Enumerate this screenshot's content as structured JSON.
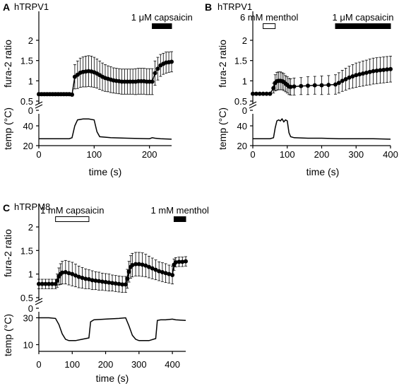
{
  "chart_data": [
    {
      "panel_letter": "A",
      "type": "line",
      "title": "hTRPV1",
      "xlabel": "time (s)",
      "ylabel_top": "fura-2 ratio",
      "ylabel_bottom": "temp (°C)",
      "xlim": [
        0,
        240
      ],
      "x_ticks": [
        0,
        100,
        200
      ],
      "ratio_ylim": [
        0.5,
        2
      ],
      "ratio_ticks": [
        "0.5",
        "1",
        "1.5",
        "2"
      ],
      "break_tick": "0",
      "temp_ylim": [
        20,
        55
      ],
      "temp_ticks": [
        "20",
        "40"
      ],
      "series": [
        {
          "measure": "fura-2 ratio",
          "x": [
            0,
            5,
            10,
            15,
            20,
            25,
            30,
            35,
            40,
            45,
            50,
            55,
            60,
            65,
            70,
            75,
            80,
            85,
            90,
            95,
            100,
            105,
            110,
            115,
            120,
            125,
            130,
            135,
            140,
            145,
            150,
            155,
            160,
            165,
            170,
            175,
            180,
            185,
            190,
            195,
            200,
            205,
            210,
            215,
            220,
            225,
            230,
            235,
            240
          ],
          "y": [
            0.67,
            0.67,
            0.67,
            0.67,
            0.67,
            0.67,
            0.67,
            0.67,
            0.67,
            0.67,
            0.67,
            0.67,
            0.66,
            1.1,
            1.15,
            1.2,
            1.22,
            1.23,
            1.24,
            1.23,
            1.21,
            1.18,
            1.14,
            1.1,
            1.07,
            1.05,
            1.03,
            1.01,
            1.0,
            0.99,
            0.98,
            0.98,
            0.98,
            0.98,
            0.98,
            0.98,
            0.99,
            0.99,
            0.99,
            0.98,
            0.98,
            0.98,
            1.19,
            1.3,
            1.38,
            1.42,
            1.45,
            1.46,
            1.47
          ],
          "err": [
            0.04,
            0.04,
            0.04,
            0.04,
            0.04,
            0.04,
            0.04,
            0.04,
            0.04,
            0.04,
            0.04,
            0.04,
            0.04,
            0.3,
            0.34,
            0.36,
            0.37,
            0.38,
            0.38,
            0.38,
            0.37,
            0.36,
            0.35,
            0.34,
            0.33,
            0.32,
            0.32,
            0.31,
            0.31,
            0.31,
            0.31,
            0.31,
            0.31,
            0.31,
            0.31,
            0.32,
            0.32,
            0.32,
            0.32,
            0.32,
            0.32,
            0.32,
            0.3,
            0.28,
            0.27,
            0.26,
            0.26,
            0.25,
            0.25
          ]
        },
        {
          "measure": "temperature",
          "x": [
            0,
            50,
            55,
            60,
            65,
            70,
            80,
            90,
            100,
            105,
            110,
            130,
            160,
            200,
            205,
            210,
            220,
            240
          ],
          "y": [
            27,
            27,
            27,
            28,
            40,
            46,
            47,
            47,
            46,
            34,
            29,
            28,
            27.5,
            27,
            28,
            27.5,
            27,
            26.5
          ]
        }
      ],
      "annotations": [
        {
          "label": "1 μM capsaicin",
          "start": 205,
          "end": 240,
          "fill": "#000000"
        }
      ]
    },
    {
      "panel_letter": "B",
      "type": "line",
      "title": "hTRPV1",
      "xlabel": "time (s)",
      "ylabel_top": "fura-2 ratio",
      "ylabel_bottom": "temp (°C)",
      "xlim": [
        0,
        400
      ],
      "x_ticks": [
        0,
        100,
        200,
        300,
        400
      ],
      "ratio_ylim": [
        0.5,
        2
      ],
      "ratio_ticks": [
        "0.5",
        "1",
        "1.5",
        "2"
      ],
      "break_tick": "0",
      "temp_ylim": [
        20,
        55
      ],
      "temp_ticks": [
        "20",
        "40"
      ],
      "series": [
        {
          "measure": "fura-2 ratio",
          "x": [
            0,
            10,
            20,
            30,
            40,
            50,
            60,
            65,
            70,
            75,
            80,
            85,
            90,
            95,
            100,
            105,
            110,
            120,
            140,
            160,
            180,
            200,
            220,
            240,
            250,
            260,
            270,
            280,
            290,
            300,
            310,
            320,
            330,
            340,
            350,
            360,
            370,
            380,
            390,
            400
          ],
          "y": [
            0.68,
            0.68,
            0.68,
            0.68,
            0.68,
            0.68,
            0.82,
            0.95,
            0.99,
            1.0,
            1.0,
            0.99,
            0.97,
            0.93,
            0.9,
            0.86,
            0.85,
            0.86,
            0.87,
            0.88,
            0.89,
            0.89,
            0.9,
            0.91,
            0.95,
            1.0,
            1.04,
            1.08,
            1.11,
            1.14,
            1.16,
            1.18,
            1.2,
            1.22,
            1.24,
            1.25,
            1.26,
            1.27,
            1.28,
            1.29
          ],
          "err": [
            0.03,
            0.03,
            0.03,
            0.03,
            0.03,
            0.03,
            0.12,
            0.2,
            0.22,
            0.22,
            0.22,
            0.21,
            0.21,
            0.2,
            0.2,
            0.2,
            0.2,
            0.21,
            0.21,
            0.22,
            0.22,
            0.23,
            0.23,
            0.24,
            0.25,
            0.26,
            0.27,
            0.28,
            0.29,
            0.3,
            0.3,
            0.31,
            0.31,
            0.32,
            0.32,
            0.32,
            0.32,
            0.32,
            0.32,
            0.32
          ]
        },
        {
          "measure": "temperature",
          "x": [
            0,
            50,
            60,
            65,
            70,
            75,
            80,
            85,
            90,
            95,
            100,
            105,
            110,
            120,
            160,
            200,
            250,
            300,
            350,
            400
          ],
          "y": [
            27,
            27,
            28,
            38,
            45,
            46,
            45,
            47,
            44,
            46,
            45,
            33,
            29,
            28,
            27.5,
            27.5,
            27,
            27,
            27,
            26.5
          ]
        }
      ],
      "annotations": [
        {
          "label": "6 mM menthol",
          "start": 30,
          "end": 65,
          "fill": "#ffffff"
        },
        {
          "label": "1 μM capsaicin",
          "start": 240,
          "end": 400,
          "fill": "#000000"
        }
      ]
    },
    {
      "panel_letter": "C",
      "type": "line",
      "title": "hTRPM8",
      "xlabel": "time (s)",
      "ylabel_top": "fura-2 ratio",
      "ylabel_bottom": "temp (°C)",
      "xlim": [
        0,
        440
      ],
      "x_ticks": [
        0,
        100,
        200,
        300,
        400
      ],
      "ratio_ylim": [
        0.5,
        2
      ],
      "ratio_ticks": [
        "0.5",
        "1",
        "1.5",
        "2"
      ],
      "break_tick": "0",
      "temp_ylim": [
        5,
        35
      ],
      "temp_ticks": [
        "10",
        "30"
      ],
      "series": [
        {
          "measure": "fura-2 ratio",
          "x": [
            0,
            10,
            20,
            30,
            40,
            50,
            55,
            60,
            65,
            70,
            80,
            90,
            100,
            110,
            120,
            130,
            140,
            150,
            160,
            170,
            180,
            190,
            200,
            210,
            220,
            230,
            240,
            250,
            260,
            265,
            270,
            275,
            280,
            290,
            300,
            310,
            320,
            330,
            340,
            350,
            360,
            370,
            380,
            390,
            400,
            405,
            410,
            420,
            430,
            440
          ],
          "y": [
            0.79,
            0.79,
            0.79,
            0.79,
            0.79,
            0.79,
            0.86,
            0.95,
            1.0,
            1.03,
            1.04,
            1.02,
            1.0,
            0.97,
            0.94,
            0.92,
            0.9,
            0.89,
            0.87,
            0.86,
            0.85,
            0.84,
            0.83,
            0.82,
            0.81,
            0.8,
            0.79,
            0.78,
            0.78,
            0.9,
            1.05,
            1.15,
            1.19,
            1.21,
            1.21,
            1.2,
            1.18,
            1.15,
            1.12,
            1.09,
            1.06,
            1.04,
            1.02,
            1.0,
            0.98,
            1.2,
            1.25,
            1.26,
            1.26,
            1.27
          ],
          "err": [
            0.1,
            0.1,
            0.1,
            0.1,
            0.1,
            0.1,
            0.14,
            0.18,
            0.22,
            0.24,
            0.25,
            0.25,
            0.25,
            0.24,
            0.23,
            0.22,
            0.21,
            0.2,
            0.2,
            0.19,
            0.19,
            0.18,
            0.18,
            0.18,
            0.17,
            0.17,
            0.17,
            0.17,
            0.17,
            0.2,
            0.22,
            0.24,
            0.25,
            0.25,
            0.25,
            0.25,
            0.24,
            0.23,
            0.22,
            0.21,
            0.2,
            0.2,
            0.2,
            0.19,
            0.19,
            0.12,
            0.1,
            0.1,
            0.1,
            0.1
          ]
        },
        {
          "measure": "temperature",
          "x": [
            0,
            30,
            50,
            60,
            70,
            80,
            90,
            110,
            130,
            150,
            155,
            165,
            200,
            240,
            260,
            270,
            280,
            290,
            300,
            330,
            350,
            355,
            365,
            380,
            400,
            410,
            440
          ],
          "y": [
            30,
            30,
            29.5,
            25,
            18,
            14,
            13,
            13,
            14,
            15,
            27,
            28.5,
            29,
            29.5,
            30,
            24,
            17,
            14,
            13,
            13,
            14.5,
            28,
            28.5,
            28.5,
            29,
            28.5,
            28
          ]
        }
      ],
      "annotations": [
        {
          "label": "1 mM capsaicin",
          "start": 50,
          "end": 150,
          "fill": "#ffffff"
        },
        {
          "label": "1 mM menthol",
          "start": 405,
          "end": 440,
          "fill": "#000000"
        }
      ]
    }
  ]
}
